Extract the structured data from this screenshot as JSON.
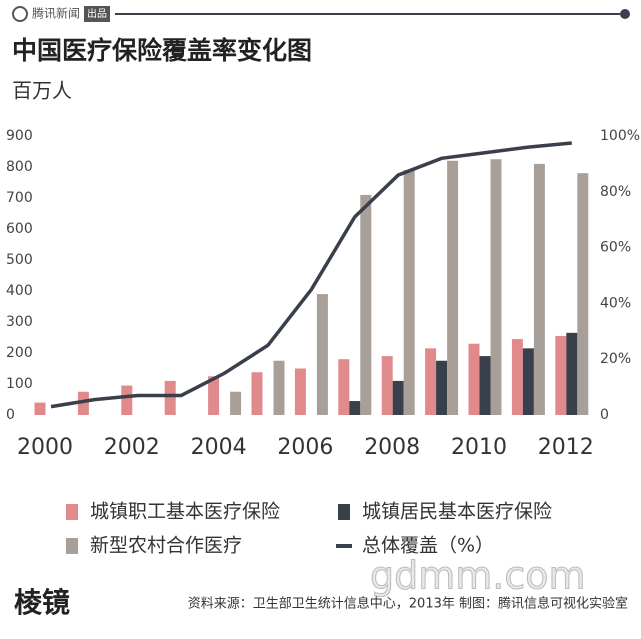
{
  "header": {
    "brand": "腾讯新闻",
    "brand_tag": "出品"
  },
  "chart_data": {
    "type": "bar",
    "title": "中国医疗保险覆盖率变化图",
    "subtitle": "百万人",
    "categories": [
      "2000",
      null,
      "2002",
      null,
      "2004",
      null,
      "2006",
      null,
      "2008",
      null,
      "2010",
      null,
      "2012"
    ],
    "series": [
      {
        "name": "城镇职工基本医疗保险",
        "color": "#e08a8c",
        "values": [
          40,
          75,
          95,
          110,
          125,
          138,
          150,
          180,
          190,
          215,
          230,
          245,
          255
        ]
      },
      {
        "name": "城镇居民基本医疗保险",
        "color": "#3a3f4c",
        "values": [
          null,
          null,
          null,
          null,
          null,
          null,
          null,
          45,
          110,
          175,
          190,
          215,
          265
        ]
      },
      {
        "name": "新型农村合作医疗",
        "color": "#a79f98",
        "values": [
          null,
          null,
          null,
          null,
          75,
          175,
          390,
          710,
          790,
          820,
          825,
          810,
          780
        ]
      },
      {
        "name": "总体覆盖（%）",
        "color": "#3a3f4c",
        "type": "line",
        "axis": "y2",
        "values": [
          3,
          5.5,
          7,
          7,
          15,
          25,
          45,
          71,
          86,
          92,
          94,
          96,
          97.5
        ]
      }
    ],
    "ylim": [
      0,
      900
    ],
    "yticks": [
      0,
      100,
      200,
      300,
      400,
      500,
      600,
      700,
      800,
      900
    ],
    "y2lim": [
      0,
      100
    ],
    "y2ticks": [
      {
        "value": 0,
        "label": "0"
      },
      {
        "value": 20,
        "label": "20%"
      },
      {
        "value": 40,
        "label": "40%"
      },
      {
        "value": 60,
        "label": "60%"
      },
      {
        "value": 80,
        "label": "80%"
      },
      {
        "value": 100,
        "label": "100%"
      }
    ],
    "grid": false
  },
  "footer": {
    "source": "资料来源：卫生部卫生统计信息中心，2013年  制图：腾讯信息可视化实验室",
    "logo": "棱镜",
    "watermark": "gdmm.com"
  }
}
